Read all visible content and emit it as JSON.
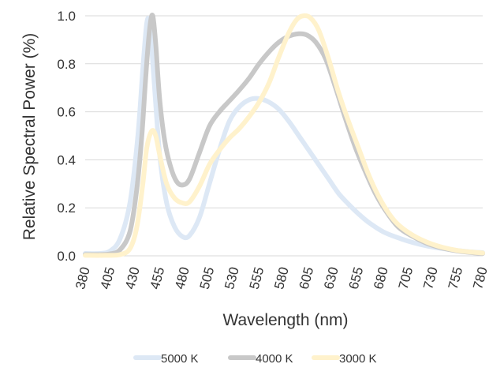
{
  "chart_data": {
    "type": "line",
    "title": "",
    "xlabel": "Wavelength (nm)",
    "ylabel": "Relative Spectral Power (%)",
    "xlim": [
      380,
      780
    ],
    "ylim": [
      0,
      1.0
    ],
    "xticks": [
      380,
      405,
      430,
      455,
      480,
      505,
      530,
      555,
      580,
      605,
      630,
      655,
      680,
      705,
      730,
      755,
      780
    ],
    "yticks": [
      "0.0",
      "0.2",
      "0.4",
      "0.6",
      "0.8",
      "1.0"
    ],
    "grid": "horizontal",
    "legend_position": "bottom",
    "series": [
      {
        "name": "5000 K",
        "color": "#dde8f5",
        "points": [
          [
            380,
            0.01
          ],
          [
            395,
            0.01
          ],
          [
            405,
            0.02
          ],
          [
            415,
            0.07
          ],
          [
            425,
            0.22
          ],
          [
            433,
            0.5
          ],
          [
            438,
            0.78
          ],
          [
            442,
            0.97
          ],
          [
            445,
            0.96
          ],
          [
            449,
            0.75
          ],
          [
            455,
            0.42
          ],
          [
            462,
            0.22
          ],
          [
            470,
            0.12
          ],
          [
            478,
            0.08
          ],
          [
            485,
            0.085
          ],
          [
            495,
            0.16
          ],
          [
            505,
            0.3
          ],
          [
            515,
            0.44
          ],
          [
            525,
            0.56
          ],
          [
            535,
            0.62
          ],
          [
            545,
            0.65
          ],
          [
            555,
            0.655
          ],
          [
            565,
            0.64
          ],
          [
            575,
            0.61
          ],
          [
            585,
            0.56
          ],
          [
            595,
            0.5
          ],
          [
            605,
            0.44
          ],
          [
            615,
            0.38
          ],
          [
            625,
            0.32
          ],
          [
            635,
            0.26
          ],
          [
            645,
            0.215
          ],
          [
            655,
            0.175
          ],
          [
            665,
            0.14
          ],
          [
            680,
            0.1
          ],
          [
            695,
            0.075
          ],
          [
            710,
            0.055
          ],
          [
            725,
            0.04
          ],
          [
            740,
            0.03
          ],
          [
            755,
            0.022
          ],
          [
            770,
            0.016
          ],
          [
            780,
            0.013
          ]
        ]
      },
      {
        "name": "4000 K",
        "color": "#c8c8c8",
        "points": [
          [
            380,
            0.005
          ],
          [
            395,
            0.005
          ],
          [
            405,
            0.008
          ],
          [
            415,
            0.025
          ],
          [
            425,
            0.1
          ],
          [
            432,
            0.28
          ],
          [
            437,
            0.5
          ],
          [
            441,
            0.75
          ],
          [
            445,
            0.95
          ],
          [
            448,
            1.0
          ],
          [
            451,
            0.88
          ],
          [
            455,
            0.65
          ],
          [
            460,
            0.48
          ],
          [
            466,
            0.37
          ],
          [
            472,
            0.31
          ],
          [
            478,
            0.295
          ],
          [
            485,
            0.32
          ],
          [
            495,
            0.43
          ],
          [
            505,
            0.54
          ],
          [
            515,
            0.6
          ],
          [
            525,
            0.645
          ],
          [
            535,
            0.69
          ],
          [
            545,
            0.74
          ],
          [
            555,
            0.8
          ],
          [
            565,
            0.85
          ],
          [
            575,
            0.89
          ],
          [
            585,
            0.915
          ],
          [
            595,
            0.925
          ],
          [
            603,
            0.92
          ],
          [
            612,
            0.89
          ],
          [
            622,
            0.82
          ],
          [
            632,
            0.7
          ],
          [
            642,
            0.57
          ],
          [
            652,
            0.45
          ],
          [
            662,
            0.35
          ],
          [
            672,
            0.26
          ],
          [
            682,
            0.19
          ],
          [
            695,
            0.12
          ],
          [
            710,
            0.08
          ],
          [
            725,
            0.05
          ],
          [
            740,
            0.032
          ],
          [
            755,
            0.02
          ],
          [
            770,
            0.013
          ],
          [
            780,
            0.01
          ]
        ]
      },
      {
        "name": "3000 K",
        "color": "#fff2cc",
        "points": [
          [
            380,
            0.002
          ],
          [
            400,
            0.002
          ],
          [
            415,
            0.005
          ],
          [
            425,
            0.03
          ],
          [
            432,
            0.12
          ],
          [
            438,
            0.3
          ],
          [
            442,
            0.45
          ],
          [
            447,
            0.52
          ],
          [
            451,
            0.5
          ],
          [
            455,
            0.42
          ],
          [
            462,
            0.3
          ],
          [
            470,
            0.24
          ],
          [
            478,
            0.22
          ],
          [
            485,
            0.225
          ],
          [
            495,
            0.29
          ],
          [
            505,
            0.38
          ],
          [
            515,
            0.44
          ],
          [
            525,
            0.49
          ],
          [
            535,
            0.53
          ],
          [
            545,
            0.58
          ],
          [
            555,
            0.64
          ],
          [
            565,
            0.72
          ],
          [
            575,
            0.83
          ],
          [
            585,
            0.93
          ],
          [
            593,
            0.985
          ],
          [
            600,
            1.0
          ],
          [
            607,
            0.99
          ],
          [
            615,
            0.94
          ],
          [
            625,
            0.82
          ],
          [
            635,
            0.68
          ],
          [
            645,
            0.56
          ],
          [
            655,
            0.45
          ],
          [
            665,
            0.34
          ],
          [
            675,
            0.25
          ],
          [
            685,
            0.18
          ],
          [
            695,
            0.13
          ],
          [
            710,
            0.085
          ],
          [
            725,
            0.055
          ],
          [
            740,
            0.035
          ],
          [
            755,
            0.022
          ],
          [
            770,
            0.015
          ],
          [
            780,
            0.012
          ]
        ]
      }
    ]
  }
}
